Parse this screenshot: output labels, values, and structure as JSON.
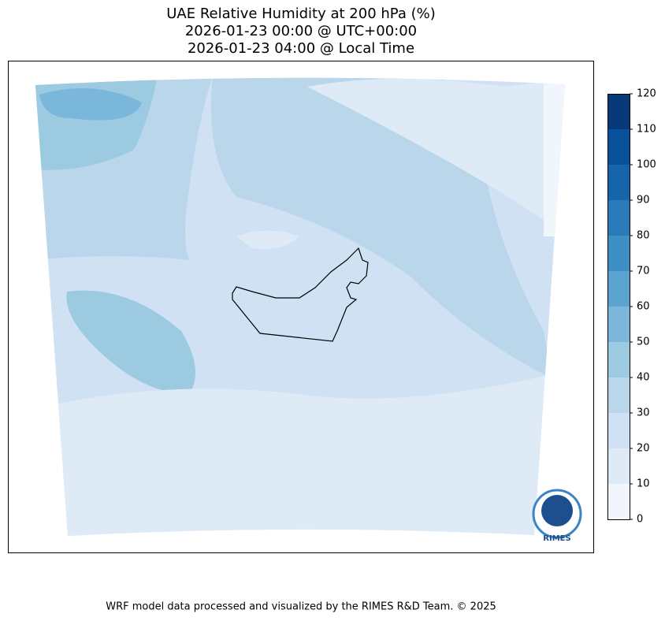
{
  "map": {
    "title_lines": [
      "UAE Relative Humidity at 200 hPa (%)",
      "2026-01-23 00:00 @ UTC+00:00",
      "2026-01-23 04:00 @ Local Time"
    ],
    "colorbar": {
      "lim": [
        0,
        120
      ],
      "ticks": [
        0,
        10,
        20,
        30,
        40,
        50,
        60,
        70,
        80,
        90,
        100,
        110,
        120
      ],
      "colors": [
        "#f0f6fc",
        "#deebf7",
        "#cfe1f2",
        "#b9d6ea",
        "#9ccae1",
        "#7bb7da",
        "#5ba3d0",
        "#3f8fc5",
        "#2a7ab9",
        "#1764ab",
        "#0a519c",
        "#083a7a"
      ]
    },
    "logo_text": "RIMES",
    "footer": "WRF model data processed and visualized by the RIMES R&D Team. © 2025"
  }
}
